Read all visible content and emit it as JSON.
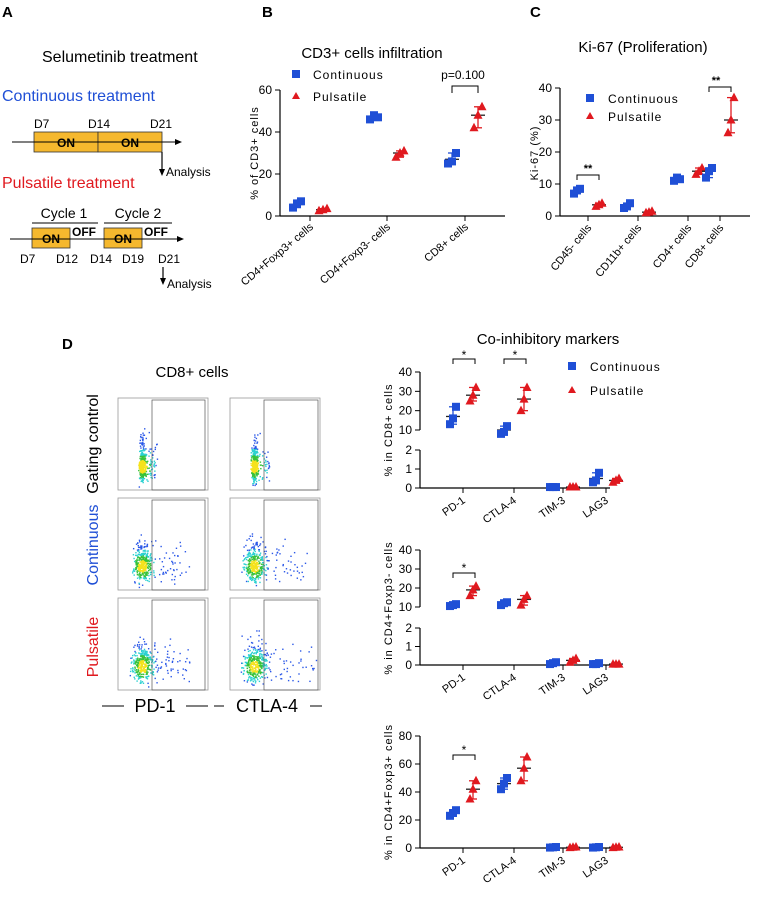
{
  "panelA": {
    "letter": "A",
    "title": "Selumetinib treatment",
    "continuous_label": "Continuous treatment",
    "pulsatile_label": "Pulsatile treatment",
    "continuous_days": [
      "D7",
      "D14",
      "D21"
    ],
    "on_label": "ON",
    "off_label": "OFF",
    "cycle1": "Cycle 1",
    "cycle2": "Cycle 2",
    "pulsatile_days": [
      "D7",
      "D12",
      "D14",
      "D19",
      "D21"
    ],
    "analysis": "Analysis",
    "colors": {
      "continuous": "#1f4fd6",
      "pulsatile": "#e0191f",
      "on_box": "#f5b82e"
    }
  },
  "panelB": {
    "letter": "B",
    "title": "CD3+ cells infiltration",
    "ylabel": "% of CD3+ cells",
    "legend": [
      "Continuous",
      "Pulsatile"
    ],
    "annotation": "p=0.100",
    "chart_data": {
      "type": "scatter",
      "categories": [
        "CD4+Foxp3+ cells",
        "CD4+Foxp3- cells",
        "CD8+ cells"
      ],
      "ylim": [
        0,
        60
      ],
      "yticks": [
        0,
        20,
        40,
        60
      ],
      "series": [
        {
          "name": "Continuous",
          "means": [
            5.5,
            47,
            27
          ],
          "points": [
            [
              4,
              6,
              7
            ],
            [
              46,
              48,
              47
            ],
            [
              25,
              26,
              30
            ]
          ]
        },
        {
          "name": "Pulsatile",
          "means": [
            3,
            30,
            48
          ],
          "points": [
            [
              2.5,
              3,
              3.5
            ],
            [
              28,
              30,
              31
            ],
            [
              42,
              48,
              52
            ]
          ]
        }
      ]
    }
  },
  "panelC": {
    "letter": "C",
    "title": "Ki-67 (Proliferation)",
    "ylabel": "Ki-67 (%)",
    "legend": [
      "Continuous",
      "Pulsatile"
    ],
    "sig": [
      "**",
      "**"
    ],
    "chart_data": {
      "type": "scatter",
      "categories": [
        "CD45- cells",
        "CD11b+ cells",
        "CD4+ cells",
        "CD8+ cells"
      ],
      "ylim": [
        0,
        40
      ],
      "yticks": [
        0,
        10,
        20,
        30,
        40
      ],
      "series": [
        {
          "name": "Continuous",
          "means": [
            7.5,
            3,
            11.5,
            14
          ],
          "points": [
            [
              7,
              8,
              8.5
            ],
            [
              2.5,
              3,
              4
            ],
            [
              11,
              12,
              11.5
            ],
            [
              12,
              14,
              15
            ]
          ]
        },
        {
          "name": "Pulsatile",
          "means": [
            3.5,
            1.2,
            14,
            30
          ],
          "points": [
            [
              3,
              3.5,
              4
            ],
            [
              1,
              1.2,
              1.5
            ],
            [
              13,
              14,
              15
            ],
            [
              26,
              30,
              37
            ]
          ]
        }
      ]
    }
  },
  "panelD": {
    "letter": "D",
    "flow_title": "CD8+ cells",
    "row_labels": [
      "Gating control",
      "Continuous",
      "Pulsatile"
    ],
    "col_labels": [
      "PD-1",
      "CTLA-4"
    ],
    "title": "Co-inhibitory markers",
    "legend": [
      "Continuous",
      "Pulsatile"
    ],
    "sig": "*",
    "categories": [
      "PD-1",
      "CTLA-4",
      "TIM-3",
      "LAG3"
    ],
    "chart_data": [
      {
        "type": "scatter",
        "ylabel": "% in CD8+ cells",
        "upper_yticks": [
          10,
          20,
          30,
          40
        ],
        "lower_yticks": [
          0,
          1,
          2
        ],
        "series": [
          {
            "name": "Continuous",
            "means": [
              17,
              10,
              0.05,
              0.5
            ],
            "points": [
              [
                13,
                16,
                22
              ],
              [
                8,
                9,
                12
              ],
              [
                0.05,
                0.05,
                0.05
              ],
              [
                0.3,
                0.4,
                0.8
              ]
            ]
          },
          {
            "name": "Pulsatile",
            "means": [
              28,
              26,
              0.05,
              0.4
            ],
            "points": [
              [
                25,
                28,
                32
              ],
              [
                20,
                26,
                32
              ],
              [
                0.05,
                0.05,
                0.05
              ],
              [
                0.3,
                0.4,
                0.5
              ]
            ]
          }
        ]
      },
      {
        "type": "scatter",
        "ylabel": "% in CD4+Foxp3- cells",
        "upper_yticks": [
          10,
          20,
          30,
          40
        ],
        "lower_yticks": [
          0,
          1,
          2
        ],
        "series": [
          {
            "name": "Continuous",
            "means": [
              11,
              12,
              0.1,
              0.05
            ],
            "points": [
              [
                10.5,
                11,
                11.5
              ],
              [
                11,
                12,
                12.5
              ],
              [
                0.05,
                0.1,
                0.15
              ],
              [
                0.05,
                0.05,
                0.1
              ]
            ]
          },
          {
            "name": "Pulsatile",
            "means": [
              19,
              14,
              0.25,
              0.05
            ],
            "points": [
              [
                16,
                19,
                21
              ],
              [
                11,
                14,
                16
              ],
              [
                0.15,
                0.25,
                0.35
              ],
              [
                0.05,
                0.05,
                0.05
              ]
            ]
          }
        ]
      },
      {
        "type": "scatter",
        "ylabel": "% in CD4+Foxp3+ cells",
        "yticks": [
          0,
          20,
          40,
          60,
          80
        ],
        "series": [
          {
            "name": "Continuous",
            "means": [
              25,
              46,
              0.5,
              0.5
            ],
            "points": [
              [
                23,
                25,
                27
              ],
              [
                42,
                46,
                50
              ],
              [
                0.3,
                0.5,
                0.7
              ],
              [
                0.3,
                0.5,
                0.7
              ]
            ]
          },
          {
            "name": "Pulsatile",
            "means": [
              42,
              57,
              0.5,
              0.5
            ],
            "points": [
              [
                35,
                42,
                48
              ],
              [
                48,
                57,
                65
              ],
              [
                0.3,
                0.5,
                0.7
              ],
              [
                0.3,
                0.5,
                0.7
              ]
            ]
          }
        ]
      }
    ]
  }
}
